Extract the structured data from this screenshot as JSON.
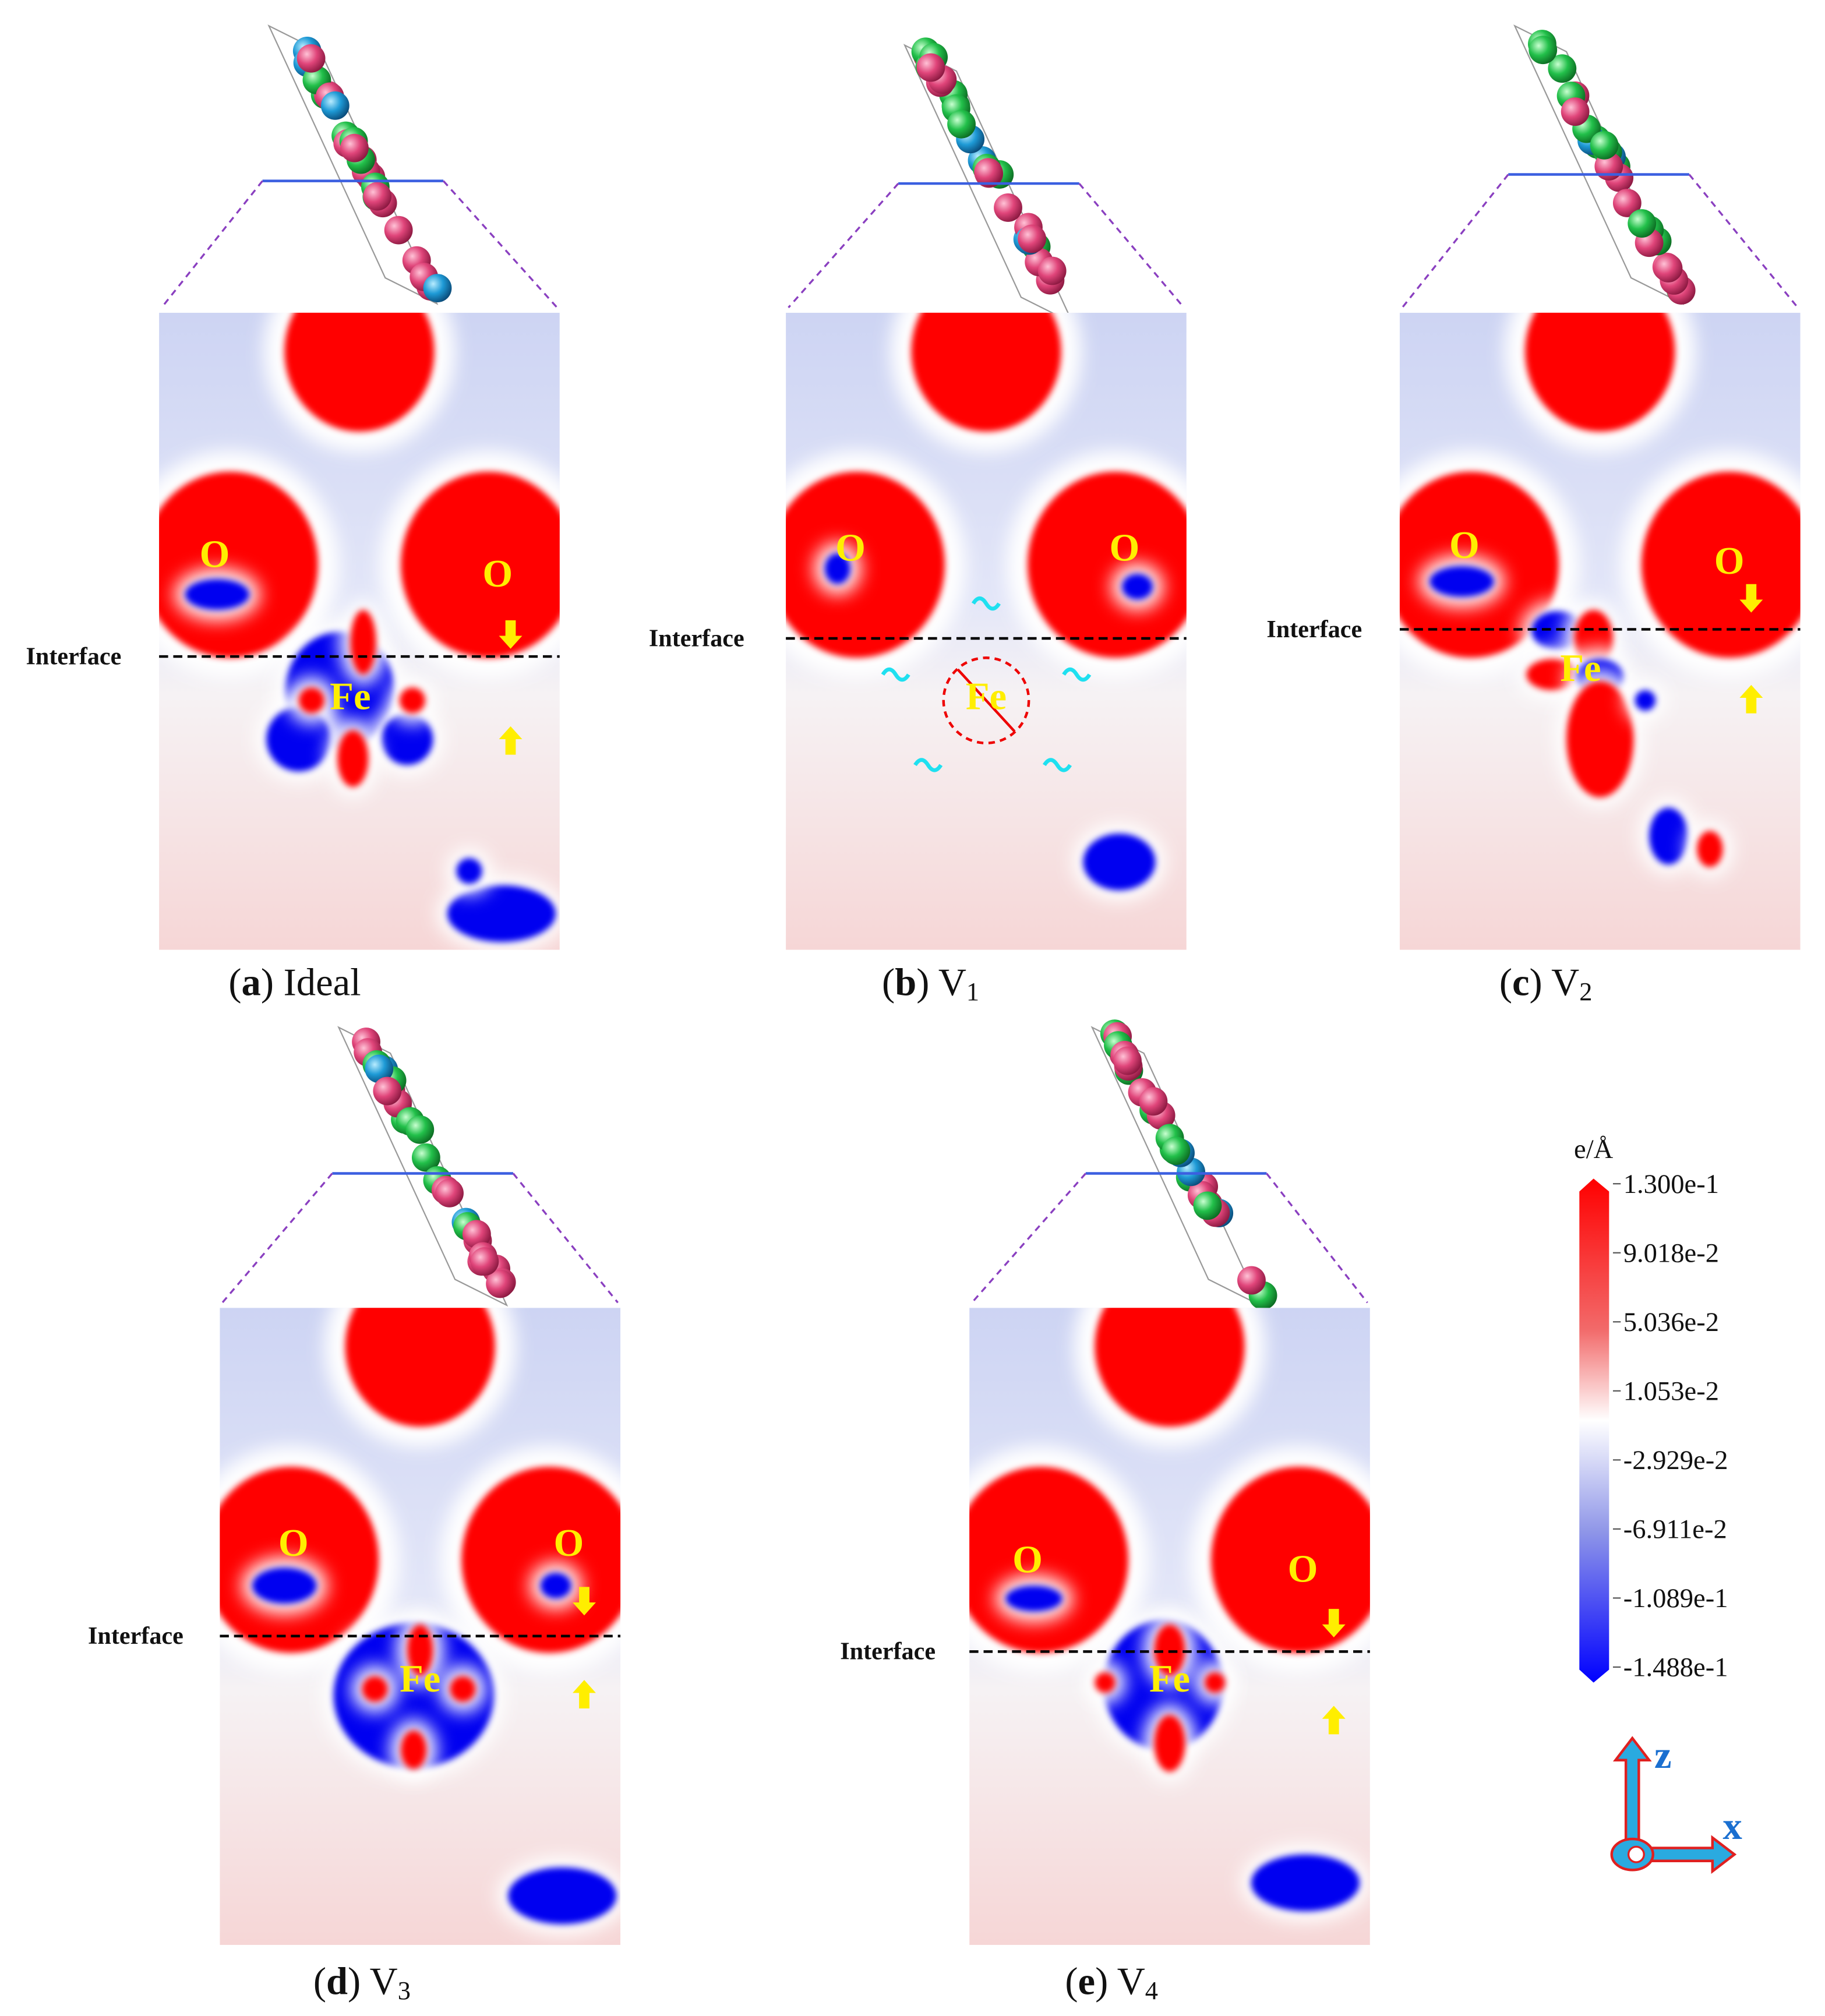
{
  "panels": [
    {
      "caption": {
        "parts": [
          "(",
          "a",
          ") Ideal"
        ]
      },
      "interface": "Interface",
      "o_left": "O",
      "o_right": "O",
      "fe": "Fe"
    },
    {
      "caption": {
        "parts": [
          "(",
          "b",
          ") V",
          "1"
        ]
      },
      "interface": "Interface",
      "o_left": "O",
      "o_right": "O",
      "fe": "Fe"
    },
    {
      "caption": {
        "parts": [
          "(",
          "c",
          ") V",
          "2"
        ]
      },
      "interface": "Interface",
      "o_left": "O",
      "o_right": "O",
      "fe": "Fe"
    },
    {
      "caption": {
        "parts": [
          "(",
          "d",
          ") V",
          "3"
        ]
      },
      "interface": "Interface",
      "o_left": "O",
      "o_right": "O",
      "fe": "Fe"
    },
    {
      "caption": {
        "parts": [
          "(",
          "e",
          ") V",
          "4"
        ]
      },
      "interface": "Interface",
      "o_left": "O",
      "o_right": "O",
      "fe": "Fe"
    }
  ],
  "colorbar": {
    "title": "e/Å",
    "ticks": [
      "1.300e-1",
      "9.018e-2",
      "5.036e-2",
      "1.053e-2",
      "-2.929e-2",
      "-6.911e-2",
      "-1.089e-1",
      "-1.488e-1"
    ]
  },
  "axes": {
    "z": "z",
    "x": "x"
  }
}
